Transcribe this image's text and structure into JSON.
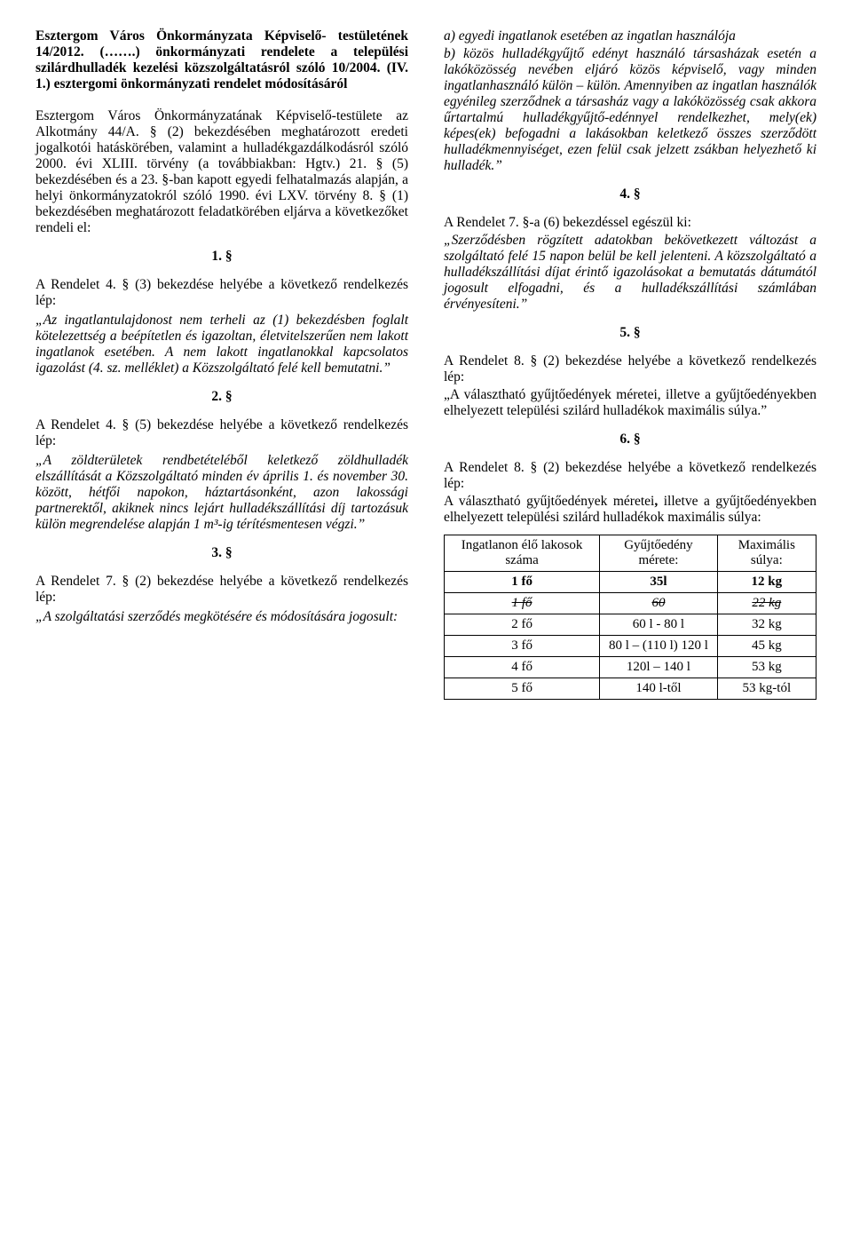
{
  "left": {
    "title1": "Esztergom Város Önkormányzata Képviselő- testületének 14/2012. (…….) önkormányzati rendelete a települési szilárdhulladék kezelési közszolgáltatásról szóló 10/2004. (IV. 1.) esztergomi önkormányzati rendelet módosításáról",
    "intro": "Esztergom Város Önkormányzatának Képviselő-testülete az Alkotmány 44/A. § (2) bekezdésében meghatározott eredeti jogalkotói hatáskörében, valamint a hulladékgazdálkodásról szóló 2000. évi XLIII. törvény (a továbbiakban: Hgtv.) 21. § (5) bekezdésében és a 23. §-ban kapott egyedi felhatalmazás alapján, a helyi önkormányzatokról szóló 1990. évi LXV. törvény 8. § (1) bekezdésében meghatározott feladatkörében eljárva a következőket rendeli el:",
    "s1_num": "1. §",
    "s1_lead": "A Rendelet 4. § (3) bekezdése helyébe a következő rendelkezés lép:",
    "s1_body": "„Az ingatlantulajdonost nem terheli az (1) bekezdésben foglalt kötelezettség a beépítetlen és igazoltan, életvitelszerűen nem lakott ingatlanok esetében. A nem lakott ingatlanokkal kapcsolatos igazolást (4. sz. melléklet) a Közszolgáltató felé kell bemutatni.”",
    "s2_num": "2. §",
    "s2_lead": "A Rendelet 4. § (5) bekezdése helyébe a következő rendelkezés lép:",
    "s2_body": "„A zöldterületek rendbetételéből keletkező zöldhulladék elszállítását a Közszolgáltató minden év április 1. és november 30. között, hétfői napokon, háztartásonként, azon lakossági partnerektől, akiknek nincs lejárt hulladékszállítási díj tartozásuk külön megrendelése alapján 1 m³-ig térítésmentesen végzi.”",
    "s3_num": "3. §",
    "s3_lead": "A Rendelet 7. § (2) bekezdése helyébe a következő rendelkezés lép:",
    "s3_body": "„A szolgáltatási szerződés megkötésére és módosítására jogosult:"
  },
  "right": {
    "r3a": "a) egyedi ingatlanok esetében az ingatlan használója",
    "r3b": "b) közös hulladékgyűjtő edényt használó társasházak esetén a lakóközösség nevében eljáró közös képviselő, vagy minden ingatlanhasználó külön – külön. Amennyiben az ingatlan használók egyénileg szerződnek a társasház vagy a lakóközösség csak akkora űrtartalmú hulladékgyűjtő-edénnyel rendelkezhet, mely(ek) képes(ek) befogadni a lakásokban keletkező összes szerződött hulladékmennyiséget, ezen felül csak jelzett zsákban helyezhető ki hulladék.”",
    "s4_num": "4. §",
    "s4_lead": "A Rendelet 7. §-a (6) bekezdéssel egészül ki:",
    "s4_body": "„Szerződésben rögzített adatokban bekövetkezett változást a szolgáltató felé 15 napon belül be kell jelenteni. A közszolgáltató a hulladékszállítási díjat érintő igazolásokat a bemutatás dátumától jogosult elfogadni, és a hulladékszállítási számlában érvényesíteni.”",
    "s5_num": "5. §",
    "s5_lead": "A Rendelet 8. § (2) bekezdése helyébe a következő rendelkezés lép:",
    "s5_body": "„A választható gyűjtőedények méretei, illetve a gyűjtőedényekben elhelyezett települési szilárd hulladékok maximális súlya.”",
    "s6_num": "6. §",
    "s6_lead": "A Rendelet 8. § (2) bekezdése helyébe a következő rendelkezés lép:",
    "s6_body_pre": "A választható gyűjtőedények méretei",
    "s6_body_post": " illetve a gyűjtőedényekben elhelyezett települési szilárd hulladékok maximális súlya:",
    "table": {
      "headers": [
        "Ingatlanon élő lakosok száma",
        "Gyűjtőedény mérete:",
        "Maximális súlya:"
      ],
      "rows": [
        {
          "c0": "1 fő",
          "c1": "35l",
          "c2": "12 kg",
          "bold": true,
          "strike": false
        },
        {
          "c0": "1 fő",
          "c1": "60",
          "c2": "22 kg",
          "bold": false,
          "strike": true
        },
        {
          "c0": "2 fő",
          "c1": "60 l - 80 l",
          "c2": "32 kg",
          "bold": false,
          "strike": false
        },
        {
          "c0": "3 fő",
          "c1": "80 l – (110 l) 120 l",
          "c2": "45 kg",
          "bold": false,
          "strike": false
        },
        {
          "c0": "4 fő",
          "c1": "120l – 140 l",
          "c2": "53 kg",
          "bold": false,
          "strike": false
        },
        {
          "c0": "5 fő",
          "c1": "140 l-től",
          "c2": "53 kg-tól",
          "bold": false,
          "strike": false
        }
      ]
    }
  }
}
